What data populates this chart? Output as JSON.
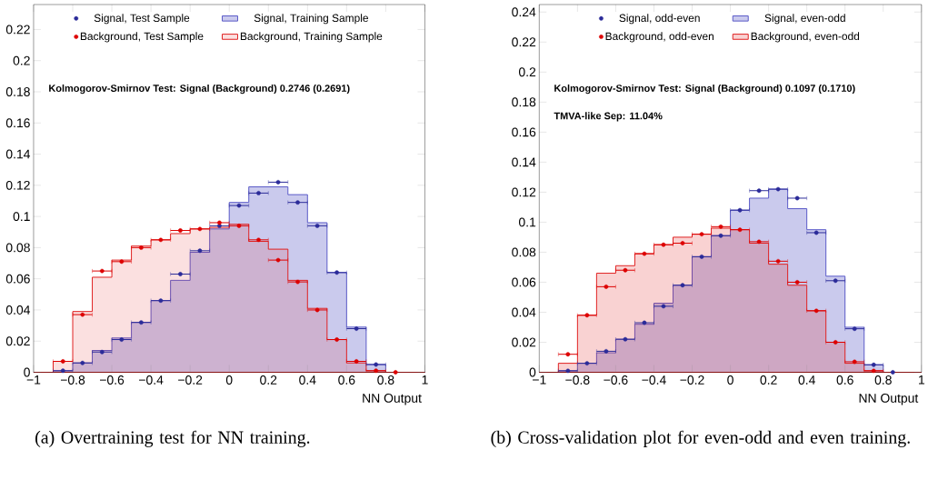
{
  "chart_data": [
    {
      "type": "histogram",
      "xlabel": "NN Output",
      "legend": "top",
      "grid": false,
      "bins": [
        -1,
        -0.9,
        -0.8,
        -0.7,
        -0.6,
        -0.5,
        -0.4,
        -0.3,
        -0.2,
        -0.1,
        0,
        0.1,
        0.2,
        0.3,
        0.4,
        0.5,
        0.6,
        0.7,
        0.8,
        0.9,
        1
      ],
      "series": [
        {
          "type": "scatter",
          "name": "Signal, Test Sample",
          "color": "#2b2b99",
          "x": [
            -0.85,
            -0.75,
            -0.65,
            -0.55,
            -0.45,
            -0.35,
            -0.25,
            -0.15,
            -0.05,
            0.05,
            0.15,
            0.25,
            0.35,
            0.45,
            0.55,
            0.65,
            0.75
          ],
          "values": [
            0.001,
            0.006,
            0.013,
            0.021,
            0.032,
            0.046,
            0.063,
            0.078,
            0.094,
            0.107,
            0.115,
            0.122,
            0.109,
            0.094,
            0.064,
            0.028,
            0.005
          ],
          "xerrors": [
            0.05,
            0.05,
            0.05,
            0.05,
            0.05,
            0.05,
            0.05,
            0.05,
            0.05,
            0.05,
            0.05,
            0.05,
            0.05,
            0.05,
            0.05,
            0.05,
            0.05
          ]
        },
        {
          "name": "Signal, Training Sample",
          "color": "#5a5ac8",
          "values": [
            0,
            0.001,
            0.006,
            0.014,
            0.022,
            0.032,
            0.046,
            0.059,
            0.077,
            0.092,
            0.109,
            0.119,
            0.119,
            0.114,
            0.096,
            0.064,
            0.029,
            0.005,
            0,
            0
          ]
        },
        {
          "type": "scatter",
          "name": "Background, Test Sample",
          "color": "#dd0000",
          "x": [
            -0.85,
            -0.75,
            -0.65,
            -0.55,
            -0.45,
            -0.35,
            -0.25,
            -0.15,
            -0.05,
            0.05,
            0.15,
            0.25,
            0.35,
            0.45,
            0.55,
            0.65,
            0.75,
            0.85
          ],
          "values": [
            0.007,
            0.037,
            0.065,
            0.071,
            0.08,
            0.085,
            0.091,
            0.092,
            0.096,
            0.094,
            0.085,
            0.072,
            0.058,
            0.04,
            0.021,
            0.007,
            0.001,
            0
          ],
          "xerrors": [
            0.05,
            0.05,
            0.05,
            0.05,
            0.05,
            0.05,
            0.05,
            0.05,
            0.05,
            0.05,
            0.05,
            0.05,
            0.05,
            0.05,
            0.05,
            0.05,
            0.05,
            null
          ]
        },
        {
          "name": "Background, Training Sample",
          "color": "#e02020",
          "values": [
            0,
            0.007,
            0.039,
            0.061,
            0.072,
            0.081,
            0.085,
            0.089,
            0.092,
            0.093,
            0.095,
            0.084,
            0.079,
            0.059,
            0.041,
            0.021,
            0.006,
            0.001,
            0,
            0
          ]
        }
      ],
      "xlim": [
        -1,
        1
      ],
      "ylim": [
        0,
        0.236
      ],
      "xticks": [
        {
          "value": -1,
          "label": "−1"
        },
        {
          "value": -0.8,
          "label": "−0.8"
        },
        {
          "value": -0.6,
          "label": "−0.6"
        },
        {
          "value": -0.4,
          "label": "−0.4"
        },
        {
          "value": -0.2,
          "label": "−0.2"
        },
        0,
        0.2,
        0.4,
        0.6,
        0.8,
        1
      ],
      "yticks": [
        0,
        0.02,
        0.04,
        0.06,
        0.08,
        0.1,
        0.12,
        0.14,
        0.16,
        0.18,
        0.2,
        0.22
      ],
      "annotations": [
        "Kolmogorov-Smirnov Test: Signal (Background) 0.2746 (0.2691)",
        "(a) Overtraining test for NN training."
      ]
    },
    {
      "type": "histogram",
      "xlabel": "NN Output",
      "legend": "top",
      "grid": false,
      "bins": [
        -1,
        -0.9,
        -0.8,
        -0.7,
        -0.6,
        -0.5,
        -0.4,
        -0.3,
        -0.2,
        -0.1,
        0,
        0.1,
        0.2,
        0.3,
        0.4,
        0.5,
        0.6,
        0.7,
        0.8,
        0.9,
        1
      ],
      "series": [
        {
          "type": "scatter",
          "name": "Signal, odd-even",
          "color": "#2b2b99",
          "x": [
            -0.85,
            -0.75,
            -0.65,
            -0.55,
            -0.45,
            -0.35,
            -0.25,
            -0.15,
            -0.05,
            0.05,
            0.15,
            0.25,
            0.35,
            0.45,
            0.55,
            0.65,
            0.75,
            0.85
          ],
          "values": [
            0.001,
            0.006,
            0.014,
            0.022,
            0.033,
            0.044,
            0.058,
            0.077,
            0.091,
            0.108,
            0.121,
            0.122,
            0.116,
            0.093,
            0.061,
            0.029,
            0.005,
            0
          ],
          "xerrors": [
            0.05,
            0.05,
            0.05,
            0.05,
            0.05,
            0.05,
            0.05,
            0.05,
            0.05,
            0.05,
            0.05,
            0.05,
            0.05,
            0.05,
            0.05,
            0.05,
            0.05,
            null
          ]
        },
        {
          "name": "Signal, even-odd",
          "color": "#5a5ac8",
          "values": [
            0,
            0.001,
            0.006,
            0.013,
            0.022,
            0.032,
            0.046,
            0.058,
            0.077,
            0.091,
            0.108,
            0.116,
            0.122,
            0.109,
            0.095,
            0.064,
            0.03,
            0.005,
            0,
            0
          ]
        },
        {
          "type": "scatter",
          "name": "Background, odd-even",
          "color": "#dd0000",
          "x": [
            -0.85,
            -0.75,
            -0.65,
            -0.55,
            -0.45,
            -0.35,
            -0.25,
            -0.15,
            -0.05,
            0.05,
            0.15,
            0.25,
            0.35,
            0.45,
            0.55,
            0.65,
            0.75
          ],
          "values": [
            0.012,
            0.038,
            0.057,
            0.068,
            0.079,
            0.085,
            0.086,
            0.092,
            0.097,
            0.095,
            0.087,
            0.074,
            0.06,
            0.041,
            0.02,
            0.007,
            0.001
          ],
          "xerrors": [
            0.05,
            0.05,
            0.05,
            0.05,
            0.05,
            0.05,
            0.05,
            0.05,
            0.05,
            0.05,
            0.05,
            0.05,
            0.05,
            0.05,
            0.05,
            0.05,
            0.05
          ]
        },
        {
          "name": "Background, even-odd",
          "color": "#e02020",
          "values": [
            0,
            0.006,
            0.038,
            0.066,
            0.071,
            0.079,
            0.085,
            0.09,
            0.092,
            0.096,
            0.095,
            0.086,
            0.072,
            0.058,
            0.041,
            0.02,
            0.006,
            0.001,
            0,
            0
          ]
        }
      ],
      "xlim": [
        -1,
        1
      ],
      "ylim": [
        0,
        0.245
      ],
      "xticks": [
        {
          "value": -1,
          "label": "−1"
        },
        {
          "value": -0.8,
          "label": "−0.8"
        },
        {
          "value": -0.6,
          "label": "−0.6"
        },
        {
          "value": -0.4,
          "label": "−0.4"
        },
        {
          "value": -0.2,
          "label": "−0.2"
        },
        0,
        0.2,
        0.4,
        0.6,
        0.8,
        1
      ],
      "yticks": [
        0,
        0.02,
        0.04,
        0.06,
        0.08,
        0.1,
        0.12,
        0.14,
        0.16,
        0.18,
        0.2,
        0.22,
        0.24
      ],
      "annotations": [
        "Kolmogorov-Smirnov Test: Signal (Background) 0.1097 (0.1710)",
        "TMVA-like Sep: 11.04%",
        "(b) Cross-validation plot for even-odd and even training."
      ]
    }
  ]
}
